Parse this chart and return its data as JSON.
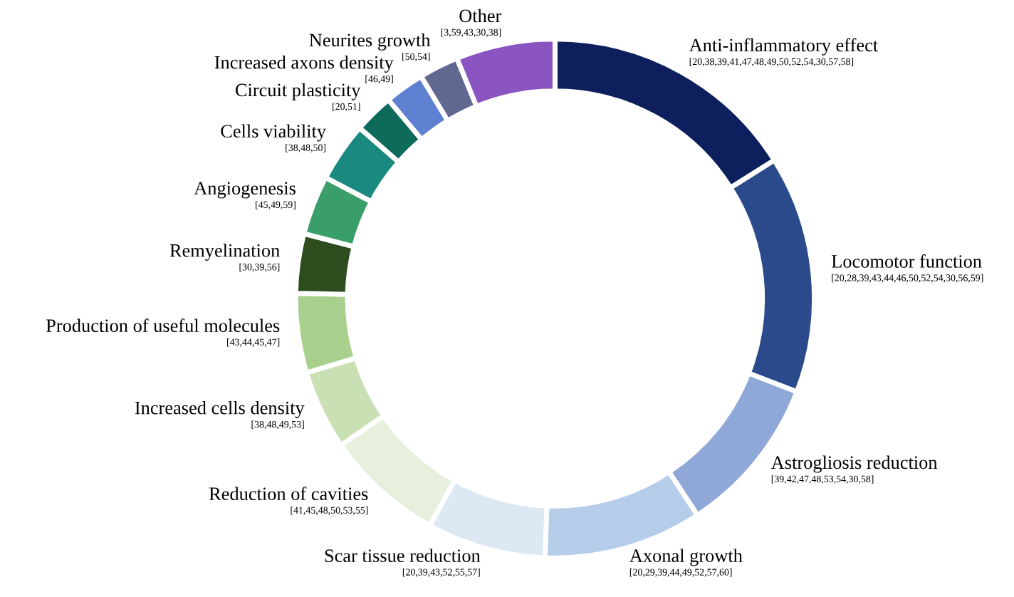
{
  "chart_data": {
    "type": "donut",
    "categories": [
      "Anti-inflammatory effect",
      "Locomotor function",
      "Astrogliosis reduction",
      "Axonal growth",
      "Scar tissue reduction",
      "Reduction of cavities",
      "Increased cells density",
      "Production of useful molecules",
      "Remyelination",
      "Angiogenesis",
      "Cells viability",
      "Circuit plasticity",
      "Increased axons density",
      "Neurites growth",
      "Other"
    ],
    "values": [
      16.05,
      14.81,
      9.88,
      9.88,
      7.41,
      7.41,
      4.94,
      4.94,
      3.7,
      3.7,
      3.7,
      2.47,
      2.47,
      2.47,
      6.17
    ],
    "colors": [
      "#0d1f5c",
      "#2a4a8c",
      "#8fa8d8",
      "#b5cde8",
      "#dce8f4",
      "#e6f0dc",
      "#c8e0b4",
      "#a8d08c",
      "#2e4d1f",
      "#3a9e6a",
      "#1a8a80",
      "#0e6a5a",
      "#5f7fd0",
      "#606890",
      "#8a55c0"
    ],
    "annotations": [
      "[20,38,39,41,47,48,49,50,52,54,30,57,58]",
      "[20,28,39,43,44,46,50,52,54,30,56,59]",
      "[39,42,47,48,53,54,30,58]",
      "[20,29,39,44,49,52,57,60]",
      "[20,39,43,52,55,57]",
      "[41,45,48,50,53,55]",
      "[38,48,49,53]",
      "[43,44,45,47]",
      "[30,39,56]",
      "[45,49,59]",
      "[38,48,50]",
      "[20,51]",
      "[46,49]",
      "[50,54]",
      "[3,59,43,30,38]"
    ]
  }
}
